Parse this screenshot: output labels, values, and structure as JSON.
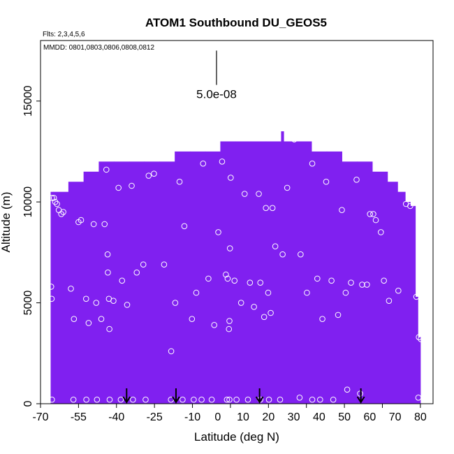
{
  "chart_data": {
    "type": "heatmap",
    "title": "ATOM1 Southbound DU_GEOS5",
    "subtitle": "Flts: 2,3,4,5,6",
    "annotation": "MMDD: 0801,0803,0806,0808,0812",
    "xlabel": "Latitude (deg N)",
    "ylabel": "Altitude (m)",
    "xlim": [
      -70,
      85
    ],
    "ylim": [
      0,
      18000
    ],
    "x_ticks": [
      -70,
      -55,
      -40,
      -25,
      -10,
      5,
      20,
      35,
      50,
      65,
      80
    ],
    "x_tick_labels": [
      "-70",
      "-55",
      "-40",
      "-25",
      "-10",
      "0",
      "10",
      "20",
      "30",
      "40",
      "50",
      "60",
      "70",
      "80"
    ],
    "x_tick_values": [
      -70,
      -55,
      -40,
      -25,
      -10,
      0,
      10,
      20,
      30,
      40,
      50,
      60,
      70,
      80
    ],
    "y_ticks": [
      0,
      5000,
      10000,
      15000
    ],
    "y_tick_labels": [
      "0",
      "5000",
      "10000",
      "15000"
    ],
    "scale_bar": {
      "label": "5.0e-08",
      "x": -0.5,
      "y_bottom": 15800,
      "y_top": 17500
    },
    "fill_color": "#8020F0",
    "marker_color": "#ffffff",
    "grid": false,
    "fill_profile": [
      {
        "x0": -66,
        "x1": -65,
        "top": 10500
      },
      {
        "x0": -65,
        "x1": -59,
        "top": 10500
      },
      {
        "x0": -59,
        "x1": -53,
        "top": 11000
      },
      {
        "x0": -53,
        "x1": -47,
        "top": 11500
      },
      {
        "x0": -47,
        "x1": -41,
        "top": 12000
      },
      {
        "x0": -41,
        "x1": -35,
        "top": 12000
      },
      {
        "x0": -35,
        "x1": -29,
        "top": 12000
      },
      {
        "x0": -29,
        "x1": -23,
        "top": 12000
      },
      {
        "x0": -23,
        "x1": -17,
        "top": 12000
      },
      {
        "x0": -17,
        "x1": -11,
        "top": 12500
      },
      {
        "x0": -11,
        "x1": -5,
        "top": 12500
      },
      {
        "x0": -5,
        "x1": 1,
        "top": 12500
      },
      {
        "x0": 1,
        "x1": 7,
        "top": 13000
      },
      {
        "x0": 7,
        "x1": 13,
        "top": 13000
      },
      {
        "x0": 13,
        "x1": 19,
        "top": 13000
      },
      {
        "x0": 19,
        "x1": 25,
        "top": 13000
      },
      {
        "x0": 25,
        "x1": 26,
        "top": 13500
      },
      {
        "x0": 26,
        "x1": 31,
        "top": 13000
      },
      {
        "x0": 31,
        "x1": 37,
        "top": 13000
      },
      {
        "x0": 37,
        "x1": 43,
        "top": 12500
      },
      {
        "x0": 43,
        "x1": 49,
        "top": 12500
      },
      {
        "x0": 49,
        "x1": 55,
        "top": 12000
      },
      {
        "x0": 55,
        "x1": 61,
        "top": 12000
      },
      {
        "x0": 61,
        "x1": 67,
        "top": 11500
      },
      {
        "x0": 67,
        "x1": 71,
        "top": 11000
      },
      {
        "x0": 71,
        "x1": 74,
        "top": 10500
      },
      {
        "x0": 74,
        "x1": 76,
        "top": 10000
      },
      {
        "x0": 76,
        "x1": 78,
        "top": 9800
      },
      {
        "x0": 78,
        "x1": 79,
        "top": 5300
      },
      {
        "x0": 79,
        "x1": 80,
        "top": 3300
      }
    ],
    "points": [
      [
        -65.5,
        10200
      ],
      [
        -64.7,
        10200
      ],
      [
        -64.2,
        10000
      ],
      [
        -63.5,
        9900
      ],
      [
        -62.8,
        9600
      ],
      [
        -61.8,
        9400
      ],
      [
        -61,
        9500
      ],
      [
        -65.8,
        5800
      ],
      [
        -65.6,
        5200
      ],
      [
        -58,
        5700
      ],
      [
        -56.8,
        4200
      ],
      [
        -55,
        9000
      ],
      [
        -54,
        9100
      ],
      [
        -52,
        5200
      ],
      [
        -51,
        4000
      ],
      [
        -49,
        8900
      ],
      [
        -48,
        5000
      ],
      [
        -46,
        4200
      ],
      [
        -44.7,
        8900
      ],
      [
        -44,
        11600
      ],
      [
        -43.5,
        7400
      ],
      [
        -43.4,
        6500
      ],
      [
        -43,
        5200
      ],
      [
        -42.8,
        3700
      ],
      [
        -41.2,
        5100
      ],
      [
        -39.2,
        10700
      ],
      [
        -37.8,
        6100
      ],
      [
        -35.8,
        4900
      ],
      [
        -34,
        10800
      ],
      [
        -32,
        6500
      ],
      [
        -29.4,
        6900
      ],
      [
        -27.3,
        11300
      ],
      [
        -25.2,
        11400
      ],
      [
        -21.2,
        6900
      ],
      [
        -18.4,
        2600
      ],
      [
        -16.8,
        5000
      ],
      [
        -15.1,
        11000
      ],
      [
        -13.2,
        8800
      ],
      [
        -10.2,
        4200
      ],
      [
        -8.5,
        5500
      ],
      [
        -5.8,
        11900
      ],
      [
        -3.7,
        6200
      ],
      [
        -1.4,
        3900
      ],
      [
        0.2,
        8500
      ],
      [
        1.7,
        12000
      ],
      [
        3.2,
        6400
      ],
      [
        3.9,
        6200
      ],
      [
        4.8,
        7700
      ],
      [
        5.1,
        11200
      ],
      [
        4.6,
        4100
      ],
      [
        4.4,
        3700
      ],
      [
        6.6,
        6100
      ],
      [
        9.2,
        5000
      ],
      [
        10.6,
        10400
      ],
      [
        12.7,
        6000
      ],
      [
        14.3,
        4800
      ],
      [
        16.2,
        10400
      ],
      [
        16.8,
        6000
      ],
      [
        18.3,
        4300
      ],
      [
        19,
        9700
      ],
      [
        19.9,
        5500
      ],
      [
        20.9,
        4500
      ],
      [
        21.6,
        9700
      ],
      [
        22.7,
        7800
      ],
      [
        25.6,
        7400
      ],
      [
        27.4,
        10700
      ],
      [
        30.2,
        13100
      ],
      [
        32.7,
        7400
      ],
      [
        35.2,
        5500
      ],
      [
        37.3,
        11900
      ],
      [
        39.3,
        6200
      ],
      [
        41.3,
        4200
      ],
      [
        42.8,
        11000
      ],
      [
        44.9,
        6100
      ],
      [
        47.5,
        4400
      ],
      [
        49,
        9600
      ],
      [
        50.5,
        5500
      ],
      [
        52.6,
        6000
      ],
      [
        54.8,
        11100
      ],
      [
        57,
        5900
      ],
      [
        58.9,
        5900
      ],
      [
        60.1,
        9400
      ],
      [
        61.4,
        9400
      ],
      [
        62.4,
        9100
      ],
      [
        64.4,
        8500
      ],
      [
        65.6,
        6100
      ],
      [
        67.6,
        5100
      ],
      [
        69.4,
        11300
      ],
      [
        71.3,
        5600
      ],
      [
        74.3,
        9900
      ],
      [
        76,
        9800
      ],
      [
        78.4,
        5300
      ],
      [
        79.4,
        3300
      ],
      [
        80.2,
        3200
      ],
      [
        -65.5,
        200
      ],
      [
        -57,
        200
      ],
      [
        -51.9,
        200
      ],
      [
        -47.7,
        200
      ],
      [
        -42.7,
        200
      ],
      [
        -38.3,
        200
      ],
      [
        -33.5,
        200
      ],
      [
        -28.5,
        200
      ],
      [
        -18.5,
        200
      ],
      [
        -13.9,
        200
      ],
      [
        -9.5,
        200
      ],
      [
        -6.4,
        200
      ],
      [
        -2.4,
        200
      ],
      [
        3.6,
        200
      ],
      [
        4.6,
        200
      ],
      [
        7.4,
        200
      ],
      [
        11.9,
        200
      ],
      [
        16.8,
        200
      ],
      [
        20.2,
        200
      ],
      [
        24.6,
        200
      ],
      [
        32.3,
        300
      ],
      [
        37.3,
        200
      ],
      [
        40.4,
        200
      ],
      [
        45.6,
        200
      ],
      [
        51.1,
        700
      ],
      [
        56.2,
        500
      ],
      [
        79.2,
        300
      ]
    ],
    "arrows": [
      -36,
      -16.5,
      16.5,
      56.5
    ]
  }
}
